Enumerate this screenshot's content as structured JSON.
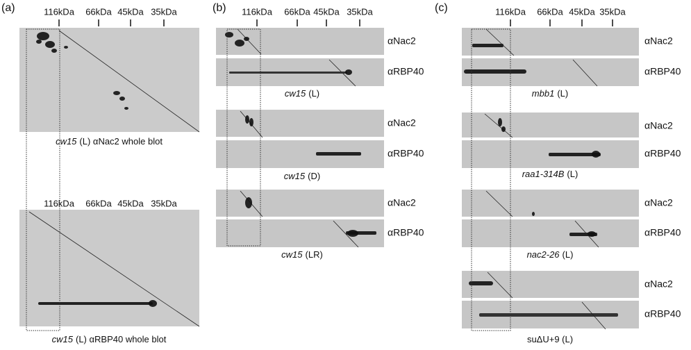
{
  "panels": [
    {
      "label": "(a)",
      "blots": [
        {
          "caption": {
            "strain": "cw15",
            "rest": "(L) αNac2 whole blot"
          }
        },
        {
          "caption": {
            "strain": "cw15",
            "rest": "(L) αRBP40 whole blot"
          }
        }
      ]
    },
    {
      "label": "(b)",
      "groups": [
        {
          "caption": {
            "strain": "cw15",
            "rest": "(L)"
          }
        },
        {
          "caption": {
            "strain": "cw15",
            "rest": "(D)"
          }
        },
        {
          "caption": {
            "strain": "cw15",
            "rest": "(LR)"
          }
        }
      ]
    },
    {
      "label": "(c)",
      "groups": [
        {
          "caption": {
            "strain": "mbb1",
            "rest": "(L)"
          }
        },
        {
          "caption": {
            "strain": "raa1-314B",
            "rest": "(L)"
          }
        },
        {
          "caption": {
            "strain": "nac2-26",
            "rest": "(L)"
          }
        },
        {
          "caption": {
            "rest": "suΔU+9 (L)"
          }
        }
      ]
    }
  ],
  "markers": [
    "116kDa",
    "66kDa",
    "45kDa",
    "35kDa"
  ],
  "antibodies": [
    "αNac2",
    "αRBP40"
  ]
}
